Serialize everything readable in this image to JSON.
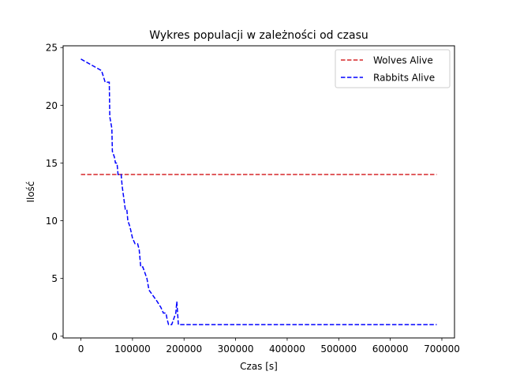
{
  "chart_data": {
    "type": "line",
    "title": "Wykres populacji w zależności od czasu",
    "xlabel": "Czas [s]",
    "ylabel": "Ilość",
    "xlim": [
      -34500,
      724500
    ],
    "ylim": [
      -0.15,
      25.15
    ],
    "xticks": [
      0,
      100000,
      200000,
      300000,
      400000,
      500000,
      600000,
      700000
    ],
    "xtick_labels": [
      "0",
      "100000",
      "200000",
      "300000",
      "400000",
      "500000",
      "600000",
      "700000"
    ],
    "yticks": [
      0,
      5,
      10,
      15,
      20,
      25
    ],
    "ytick_labels": [
      "0",
      "5",
      "10",
      "15",
      "20",
      "25"
    ],
    "grid": false,
    "legend_position": "top-right",
    "series": [
      {
        "name": "Wolves Alive",
        "color": "#d62728",
        "style": "dashed",
        "points": [
          [
            0,
            14
          ],
          [
            690000,
            14
          ]
        ]
      },
      {
        "name": "Rabbits Alive",
        "color": "#0000ff",
        "style": "dashed",
        "points": [
          [
            0,
            24
          ],
          [
            20000,
            23.5
          ],
          [
            40000,
            23
          ],
          [
            47000,
            22
          ],
          [
            55000,
            22
          ],
          [
            56000,
            19
          ],
          [
            60000,
            18
          ],
          [
            61000,
            16
          ],
          [
            65000,
            15.5
          ],
          [
            67000,
            15
          ],
          [
            70000,
            15
          ],
          [
            72000,
            14
          ],
          [
            78000,
            14
          ],
          [
            80000,
            13
          ],
          [
            83000,
            12
          ],
          [
            86000,
            11
          ],
          [
            89000,
            11
          ],
          [
            91000,
            10
          ],
          [
            95000,
            9.5
          ],
          [
            100000,
            8.5
          ],
          [
            105000,
            8
          ],
          [
            110000,
            8
          ],
          [
            113000,
            7.5
          ],
          [
            116000,
            6
          ],
          [
            120000,
            6
          ],
          [
            124000,
            5.5
          ],
          [
            128000,
            5
          ],
          [
            132000,
            4
          ],
          [
            140000,
            3.5
          ],
          [
            148000,
            3
          ],
          [
            155000,
            2.5
          ],
          [
            160000,
            2
          ],
          [
            165000,
            2
          ],
          [
            167000,
            1.5
          ],
          [
            170000,
            1
          ],
          [
            176000,
            1
          ],
          [
            180000,
            1.5
          ],
          [
            184000,
            2
          ],
          [
            186000,
            3
          ],
          [
            189000,
            1
          ],
          [
            690000,
            1
          ]
        ]
      }
    ]
  }
}
